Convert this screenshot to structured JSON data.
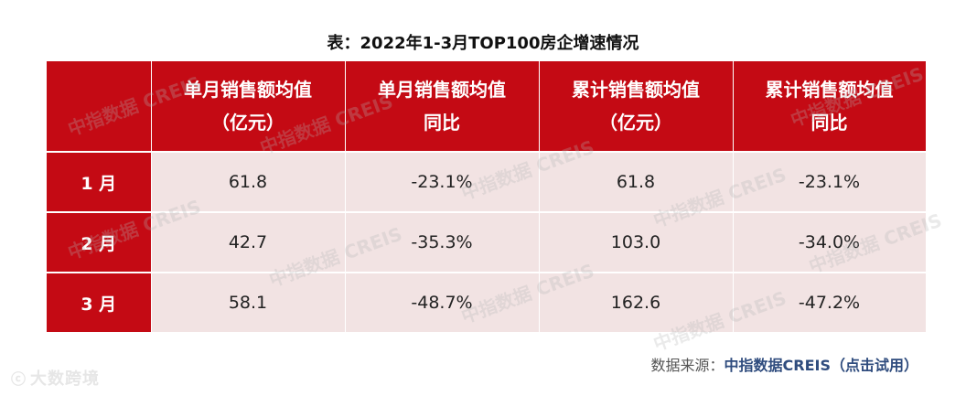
{
  "title": "表：2022年1-3月TOP100房企增速情况",
  "table": {
    "headers": [
      "",
      "单月销售额均值\n（亿元）",
      "单月销售额均值\n同比",
      "累计销售额均值\n（亿元）",
      "累计销售额均值\n同比"
    ],
    "rows": [
      {
        "label": "1 月",
        "cells": [
          "61.8",
          "-23.1%",
          "61.8",
          "-23.1%"
        ]
      },
      {
        "label": "2 月",
        "cells": [
          "42.7",
          "-35.3%",
          "103.0",
          "-34.0%"
        ]
      },
      {
        "label": "3 月",
        "cells": [
          "58.1",
          "-48.7%",
          "162.6",
          "-47.2%"
        ]
      }
    ]
  },
  "watermark": "中指数据 CREIS",
  "source": {
    "prefix": "数据来源：",
    "brand": "中指数据CREIS（点击试用）"
  },
  "logo": {
    "text": "大数跨境"
  },
  "colors": {
    "header_bg": "#c40a14",
    "cell_bg": "#f2e3e3",
    "source_brand": "#2f4c7e"
  }
}
